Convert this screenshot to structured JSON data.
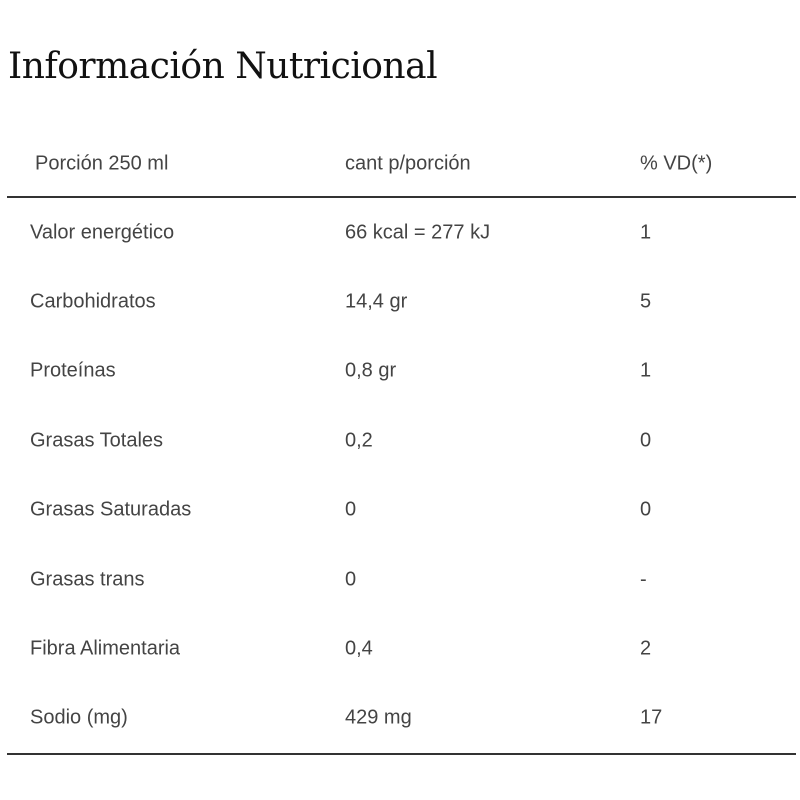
{
  "title": "Información Nutricional",
  "table": {
    "headers": [
      "Porción 250 ml",
      "cant p/porción",
      "% VD(*)"
    ],
    "rows": [
      [
        "Valor energético",
        "66 kcal = 277 kJ",
        "1"
      ],
      [
        "Carbohidratos",
        "14,4 gr",
        "5"
      ],
      [
        "Proteínas",
        "0,8 gr",
        "1"
      ],
      [
        "Grasas Totales",
        "0,2",
        "0"
      ],
      [
        "Grasas Saturadas",
        "0",
        "0"
      ],
      [
        "Grasas trans",
        "0",
        "-"
      ],
      [
        "Fibra Alimentaria",
        "0,4",
        "2"
      ],
      [
        "Sodio (mg)",
        "429 mg",
        "17"
      ]
    ]
  }
}
